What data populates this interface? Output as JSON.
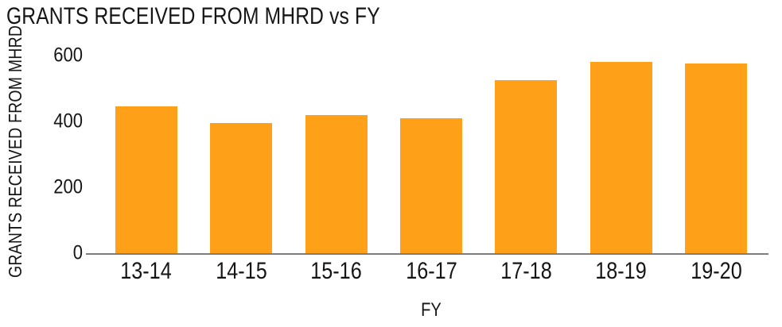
{
  "chart_data": {
    "type": "bar",
    "title": "GRANTS RECEIVED FROM MHRD vs FY",
    "xlabel": "FY",
    "ylabel": "GRANTS RECEIVED FROM MHRD",
    "categories": [
      "13-14",
      "14-15",
      "15-16",
      "16-17",
      "17-18",
      "18-19",
      "19-20"
    ],
    "values": [
      445,
      395,
      420,
      410,
      525,
      580,
      575
    ],
    "ylim": [
      0,
      600
    ],
    "yticks": [
      0,
      200,
      400,
      600
    ],
    "grid": false,
    "legend": "none",
    "colors": {
      "bar": "#FFA019",
      "axis_line": "#7d7d7d",
      "text": "#151515",
      "background": "#ffffff"
    }
  }
}
